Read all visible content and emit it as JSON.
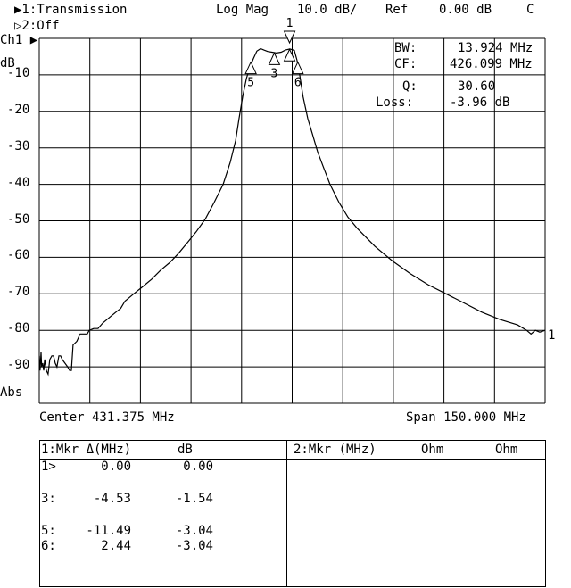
{
  "header": {
    "channel1": "▶1:Transmission",
    "format": "Log Mag",
    "scale": "10.0 dB/",
    "ref_label": "Ref",
    "ref_value": "0.00 dB",
    "coupling": "C",
    "channel2": "▷2:Off"
  },
  "axis_left": {
    "channel": "Ch1 ▶",
    "unit": "dB",
    "ticks": [
      "-10",
      "-20",
      "-30",
      "-40",
      "-50",
      "-60",
      "-70",
      "-80",
      "-90"
    ],
    "bottom_label": "Abs"
  },
  "footer": {
    "center": "Center 431.375 MHz",
    "span": "Span 150.000 MHz"
  },
  "stats": {
    "bw_label": "BW:",
    "bw_value": "13.924 MHz",
    "cf_label": "CF:",
    "cf_value": "426.099 MHz",
    "q_label": "Q:",
    "q_value": "30.60",
    "loss_label": "Loss:",
    "loss_value": "-3.96 dB"
  },
  "trace_end_label": "1",
  "marker_table": {
    "left_header": {
      "title": "1:Mkr Δ(MHz)",
      "unit": "dB"
    },
    "right_header": {
      "title": "2:Mkr (MHz)",
      "col1": "Ohm",
      "col2": "Ohm"
    },
    "rows": [
      {
        "id": "1>",
        "freq": "0.00",
        "value": "0.00"
      },
      {
        "id": "3:",
        "freq": "-4.53",
        "value": "-1.54"
      },
      {
        "id": "5:",
        "freq": "-11.49",
        "value": "-3.04"
      },
      {
        "id": "6:",
        "freq": "2.44",
        "value": "-3.04"
      }
    ]
  },
  "chart_data": {
    "type": "line",
    "xlabel": "",
    "ylabel": "dB",
    "xlim": [
      356.375,
      506.375
    ],
    "ylim": [
      -100,
      0
    ],
    "x_divisions": 10,
    "y_divisions": 10,
    "grid": true,
    "trace_color": "#000000",
    "series": [
      {
        "points": [
          [
            356.4,
            -87
          ],
          [
            356.6,
            -91
          ],
          [
            356.9,
            -86
          ],
          [
            357.1,
            -90
          ],
          [
            357.4,
            -89
          ],
          [
            357.7,
            -91
          ],
          [
            358.0,
            -88
          ],
          [
            358.5,
            -91
          ],
          [
            359.0,
            -92
          ],
          [
            359.5,
            -88
          ],
          [
            360.1,
            -87
          ],
          [
            360.6,
            -87
          ],
          [
            361.1,
            -89
          ],
          [
            361.6,
            -90
          ],
          [
            362.2,
            -87
          ],
          [
            362.7,
            -87
          ],
          [
            363.2,
            -88
          ],
          [
            364.0,
            -89
          ],
          [
            364.8,
            -90
          ],
          [
            365.4,
            -91
          ],
          [
            365.9,
            -91
          ],
          [
            366.4,
            -84
          ],
          [
            367.5,
            -83
          ],
          [
            368.5,
            -81
          ],
          [
            369.6,
            -81
          ],
          [
            370.6,
            -81
          ],
          [
            371.2,
            -80
          ],
          [
            372.5,
            -79.5
          ],
          [
            373.8,
            -79.5
          ],
          [
            375.2,
            -78
          ],
          [
            376.5,
            -77
          ],
          [
            377.8,
            -76
          ],
          [
            379.1,
            -75
          ],
          [
            380.5,
            -74
          ],
          [
            381.8,
            -72
          ],
          [
            383.1,
            -71
          ],
          [
            384.4,
            -70
          ],
          [
            387.1,
            -68
          ],
          [
            389.7,
            -66
          ],
          [
            392.4,
            -63.5
          ],
          [
            395.0,
            -61.5
          ],
          [
            397.6,
            -59
          ],
          [
            400.3,
            -56
          ],
          [
            402.9,
            -53
          ],
          [
            405.6,
            -49.5
          ],
          [
            408.2,
            -45
          ],
          [
            410.9,
            -40
          ],
          [
            413.0,
            -34
          ],
          [
            414.6,
            -28
          ],
          [
            415.6,
            -22
          ],
          [
            416.7,
            -16
          ],
          [
            417.8,
            -11
          ],
          [
            418.8,
            -8
          ],
          [
            419.9,
            -5.5
          ],
          [
            420.9,
            -3.5
          ],
          [
            422.0,
            -2.8
          ],
          [
            423.0,
            -3.2
          ],
          [
            424.1,
            -3.6
          ],
          [
            425.4,
            -3.8
          ],
          [
            426.7,
            -4.0
          ],
          [
            428.1,
            -3.8
          ],
          [
            429.4,
            -3.2
          ],
          [
            430.7,
            -2.9
          ],
          [
            432.0,
            -3.3
          ],
          [
            432.8,
            -6
          ],
          [
            433.6,
            -10
          ],
          [
            434.6,
            -16
          ],
          [
            436.0,
            -22
          ],
          [
            437.3,
            -26
          ],
          [
            438.9,
            -31
          ],
          [
            440.5,
            -35
          ],
          [
            442.6,
            -40
          ],
          [
            445.3,
            -45
          ],
          [
            447.9,
            -49
          ],
          [
            450.6,
            -52
          ],
          [
            455.9,
            -57
          ],
          [
            461.1,
            -61
          ],
          [
            466.4,
            -64.5
          ],
          [
            471.7,
            -67.5
          ],
          [
            477.0,
            -70
          ],
          [
            482.3,
            -72.5
          ],
          [
            487.6,
            -75
          ],
          [
            492.9,
            -77
          ],
          [
            498.2,
            -78.5
          ],
          [
            500.9,
            -80
          ],
          [
            502.2,
            -81
          ],
          [
            503.5,
            -80
          ],
          [
            504.8,
            -80.5
          ],
          [
            506.4,
            -80
          ]
        ]
      }
    ],
    "markers": [
      {
        "label": "1",
        "freq": 430.6,
        "db": -3.0,
        "active": true
      },
      {
        "label": "3",
        "freq": 426.07,
        "db": -4.0
      },
      {
        "label": "5",
        "freq": 419.11,
        "db": -6.5
      },
      {
        "label": "6",
        "freq": 433.04,
        "db": -6.5
      }
    ]
  }
}
